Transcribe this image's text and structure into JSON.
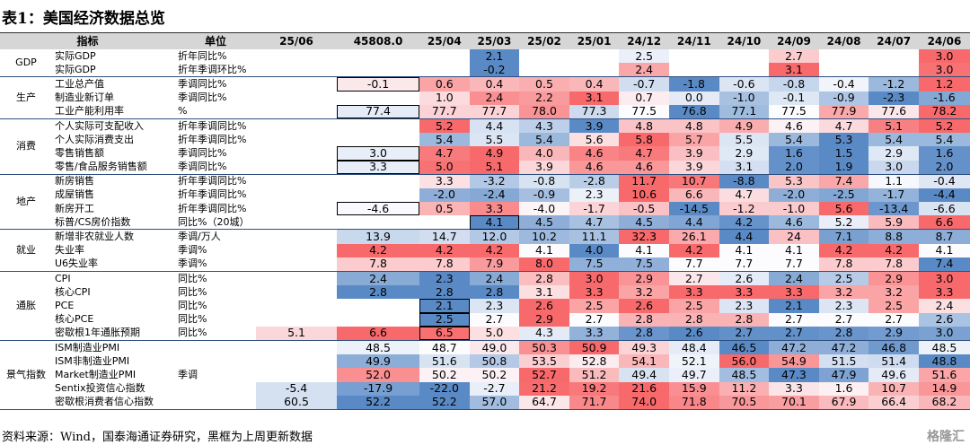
{
  "title": "表1：美国经济数据总览",
  "header": [
    "指标",
    "单位",
    "25/06",
    "45808.0",
    "25/04",
    "25/03",
    "25/02",
    "25/01",
    "24/12",
    "24/11",
    "24/10",
    "24/09",
    "24/08",
    "24/07",
    "24/06"
  ],
  "groups": [
    {
      "name": "GDP",
      "rows": [
        {
          "label": "实际GDP",
          "unit": "折年同比%",
          "cells": [
            null,
            null,
            null,
            "2.1",
            null,
            null,
            "2.5",
            null,
            null,
            "2.7",
            null,
            null,
            "3.0"
          ]
        },
        {
          "label": "实际GDP",
          "unit": "折年季调环比%",
          "cells": [
            null,
            null,
            null,
            "-0.2",
            null,
            null,
            "2.4",
            null,
            null,
            "3.1",
            null,
            null,
            "3.0"
          ]
        }
      ]
    },
    {
      "name": "生产",
      "rows": [
        {
          "label": "工业总产值",
          "unit": "季调同比%",
          "cells": [
            null,
            "-0.1",
            "0.6",
            "0.4",
            "0.5",
            "0.4",
            "-0.7",
            "-1.8",
            "-0.6",
            "-0.8",
            "-0.4",
            "-1.2",
            "1.2"
          ],
          "boxed": [
            1
          ]
        },
        {
          "label": "制造业新订单",
          "unit": "季调同比%",
          "cells": [
            null,
            null,
            "1.0",
            "2.4",
            "2.2",
            "3.1",
            "0.7",
            "0.0",
            "-1.0",
            "-0.1",
            "-0.9",
            "-2.3",
            "-1.6"
          ]
        },
        {
          "label": "工业产能利用率",
          "unit": "%",
          "cells": [
            null,
            "77.4",
            "77.7",
            "77.7",
            "78.0",
            "77.3",
            "77.5",
            "76.8",
            "77.1",
            "77.5",
            "77.9",
            "77.6",
            "78.2"
          ],
          "boxed": [
            1
          ]
        }
      ]
    },
    {
      "name": "消费",
      "rows": [
        {
          "label": "个人实际可支配收入",
          "unit": "折年季调同比%",
          "cells": [
            null,
            null,
            "5.2",
            "4.4",
            "4.3",
            "3.9",
            "4.8",
            "4.8",
            "4.9",
            "4.6",
            "4.7",
            "5.1",
            "5.2"
          ]
        },
        {
          "label": "个人实际消费支出",
          "unit": "折年季调同比%",
          "cells": [
            null,
            null,
            "5.4",
            "5.5",
            "5.4",
            "5.6",
            "5.8",
            "5.7",
            "5.5",
            "5.4",
            "5.3",
            "5.4",
            "5.4"
          ]
        },
        {
          "label": "零售销售额",
          "unit": "季调同比%",
          "cells": [
            null,
            "3.0",
            "4.7",
            "4.9",
            "4.0",
            "4.6",
            "4.7",
            "3.9",
            "2.9",
            "1.6",
            "1.5",
            "2.9",
            "1.6"
          ],
          "boxed": [
            1
          ]
        },
        {
          "label": "零售/食品服务销售额",
          "unit": "季调同比%",
          "cells": [
            null,
            "3.3",
            "5.0",
            "5.1",
            "3.9",
            "4.6",
            "4.6",
            "3.9",
            "3.1",
            "2.0",
            "1.9",
            "3.0",
            "2.0"
          ],
          "boxed": [
            1
          ]
        }
      ]
    },
    {
      "name": "地产",
      "rows": [
        {
          "label": "新房销售",
          "unit": "折年季调同比%",
          "cells": [
            null,
            null,
            "3.3",
            "-3.2",
            "-0.8",
            "-2.8",
            "11.7",
            "10.7",
            "-8.8",
            "5.3",
            "7.4",
            "1.1",
            "-0.4"
          ]
        },
        {
          "label": "成屋销售",
          "unit": "折年季调同比%",
          "cells": [
            null,
            null,
            "-2.0",
            "-2.4",
            "-0.9",
            "2.3",
            "10.6",
            "6.6",
            "4.7",
            "-2.0",
            "-2.5",
            "-1.7",
            "-4.4"
          ]
        },
        {
          "label": "新房开工",
          "unit": "折年季调同比%",
          "cells": [
            null,
            "-4.6",
            "0.5",
            "3.3",
            "-4.0",
            "-1.7",
            "-0.5",
            "-14.5",
            "-1.2",
            "-1.0",
            "5.6",
            "-13.4",
            "-6.6"
          ],
          "boxed": [
            1
          ]
        },
        {
          "label": "标普/CS房价指数",
          "unit": "同比%（20城）",
          "cells": [
            null,
            null,
            null,
            "4.1",
            "4.5",
            "4.7",
            "4.5",
            "4.4",
            "4.2",
            "4.6",
            "5.2",
            "5.9",
            "6.6"
          ],
          "boxed": [
            3
          ]
        }
      ]
    },
    {
      "name": "就业",
      "rows": [
        {
          "label": "新增非农就业人数",
          "unit": "季调/万人",
          "cells": [
            null,
            "13.9",
            "14.7",
            "12.0",
            "10.2",
            "11.1",
            "32.3",
            "26.1",
            "4.4",
            "24",
            "7.1",
            "8.8",
            "8.7"
          ]
        },
        {
          "label": "失业率",
          "unit": "季调%",
          "cells": [
            null,
            "4.2",
            "4.2",
            "4.2",
            "4.1",
            "4.0",
            "4.1",
            "4.2",
            "4.1",
            "4.1",
            "4.2",
            "4.2",
            "4.1"
          ]
        },
        {
          "label": "U6失业率",
          "unit": "季调%",
          "cells": [
            null,
            "7.8",
            "7.8",
            "7.9",
            "8.0",
            "7.5",
            "7.5",
            "7.7",
            "7.7",
            "7.7",
            "7.8",
            "7.8",
            "7.4"
          ]
        }
      ]
    },
    {
      "name": "通胀",
      "rows": [
        {
          "label": "CPI",
          "unit": "同比%",
          "cells": [
            null,
            "2.4",
            "2.3",
            "2.4",
            "2.8",
            "3.0",
            "2.9",
            "2.7",
            "2.6",
            "2.4",
            "2.5",
            "2.9",
            "3.0"
          ]
        },
        {
          "label": "核心CPI",
          "unit": "同比%",
          "cells": [
            null,
            "2.8",
            "2.8",
            "2.8",
            "3.1",
            "3.3",
            "3.2",
            "3.3",
            "3.3",
            "3.3",
            "3.2",
            "3.2",
            "3.3"
          ]
        },
        {
          "label": "PCE",
          "unit": "同比%",
          "cells": [
            null,
            null,
            "2.1",
            "2.3",
            "2.6",
            "2.5",
            "2.6",
            "2.5",
            "2.3",
            "2.1",
            "2.3",
            "2.5",
            "2.4"
          ],
          "boxed": [
            2
          ]
        },
        {
          "label": "核心PCE",
          "unit": "同比%",
          "cells": [
            null,
            null,
            "2.5",
            "2.7",
            "2.9",
            "2.7",
            "2.8",
            "2.8",
            "2.8",
            "2.7",
            "2.7",
            "2.7",
            "2.6"
          ],
          "boxed": [
            2
          ]
        },
        {
          "label": "密歇根1年通胀预期",
          "unit": "同比%",
          "cells": [
            "5.1",
            "6.6",
            "6.5",
            "5.0",
            "4.3",
            "3.3",
            "2.8",
            "2.6",
            "2.7",
            "2.7",
            "2.8",
            "2.9",
            "3.0"
          ],
          "boxed": [
            2
          ]
        }
      ]
    },
    {
      "name": "景气指数",
      "rows": [
        {
          "label": "ISM制造业PMI",
          "unit": null,
          "cells": [
            null,
            "48.5",
            "48.7",
            "49.0",
            "50.3",
            "50.9",
            "49.3",
            "48.4",
            "46.5",
            "47.2",
            "47.2",
            "46.8",
            "48.5"
          ]
        },
        {
          "label": "ISM非制造业PMI",
          "unit": null,
          "cells": [
            null,
            "49.9",
            "51.6",
            "50.8",
            "53.5",
            "52.8",
            "54.1",
            "52.1",
            "56.0",
            "54.9",
            "51.5",
            "51.4",
            "48.8"
          ]
        },
        {
          "label": "Market制造业PMI",
          "unit": "季调",
          "cells": [
            null,
            "52.0",
            "50.2",
            "50.2",
            "52.7",
            "51.2",
            "49.4",
            "49.7",
            "48.5",
            "47.3",
            "47.9",
            "49.6",
            "51.6"
          ]
        },
        {
          "label": "Sentix投资信心指数",
          "unit": null,
          "cells": [
            "-5.4",
            "-17.9",
            "-22.0",
            "-2.7",
            "21.2",
            "19.2",
            "21.6",
            "15.9",
            "11.2",
            "3.3",
            "1.6",
            "10.7",
            "14.9"
          ]
        },
        {
          "label": "密歇根消费者信心指数",
          "unit": null,
          "cells": [
            "60.5",
            "52.2",
            "52.2",
            "57.0",
            "64.7",
            "71.7",
            "74.0",
            "71.8",
            "70.5",
            "70.1",
            "67.9",
            "66.4",
            "68.2"
          ]
        }
      ]
    }
  ],
  "footer": "资料来源：Wind，国泰海通证券研究，黑框为上周更新数据",
  "watermark": "格隆汇"
}
